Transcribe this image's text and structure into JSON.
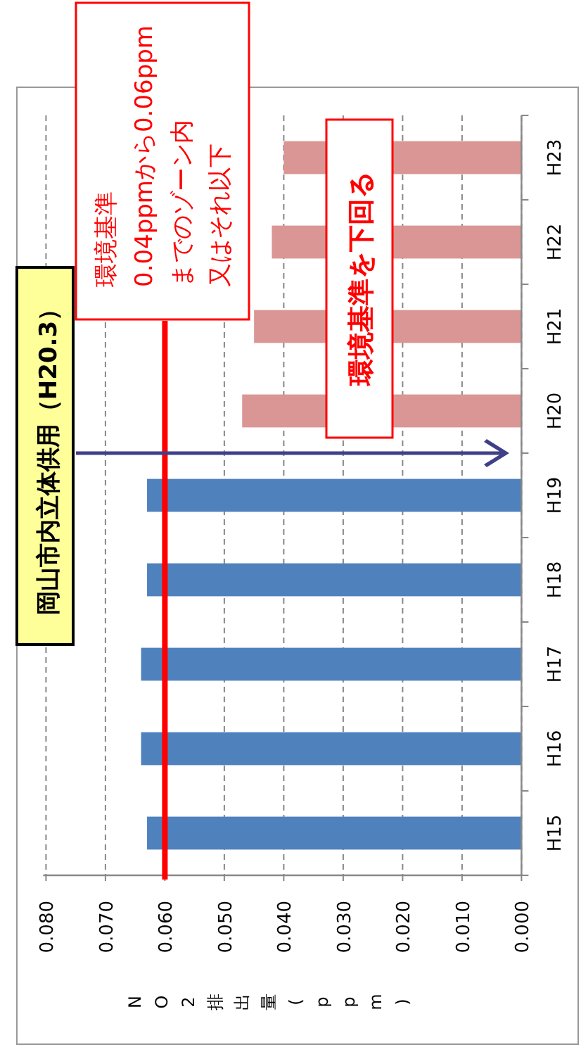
{
  "chart_data": {
    "type": "bar",
    "orientation": "horizontal",
    "xlabel": "NO2排出量(ppm)",
    "categories": [
      "H23",
      "H22",
      "H21",
      "H20",
      "H19",
      "H18",
      "H17",
      "H16",
      "H15"
    ],
    "values": [
      0.04,
      0.042,
      0.045,
      0.047,
      0.063,
      0.063,
      0.064,
      0.064,
      0.063
    ],
    "colors": [
      "#d99694",
      "#d99694",
      "#d99694",
      "#d99694",
      "#4f81bd",
      "#4f81bd",
      "#4f81bd",
      "#4f81bd",
      "#4f81bd"
    ],
    "xlim": [
      0.08,
      0
    ],
    "xticks": [
      {
        "value": 0.08,
        "label": "0.080"
      },
      {
        "value": 0.07,
        "label": "0.070"
      },
      {
        "value": 0.06,
        "label": "0.060"
      },
      {
        "value": 0.05,
        "label": "0.050"
      },
      {
        "value": 0.04,
        "label": "0.040"
      },
      {
        "value": 0.03,
        "label": "0.030"
      },
      {
        "value": 0.02,
        "label": "0.020"
      },
      {
        "value": 0.01,
        "label": "0.010"
      },
      {
        "value": 0,
        "label": "0.000"
      }
    ],
    "grid": "x",
    "ref_lines": [
      {
        "axis": "x",
        "value": 0.06,
        "label": "環境基準",
        "color": "#ff0000"
      }
    ],
    "annotations": [
      "0.04ppmから0.06ppm",
      "までのゾーン内",
      "又はそれ以下",
      "環境基準を下回る",
      "岡山市内立体供用（H20.3）"
    ]
  }
}
